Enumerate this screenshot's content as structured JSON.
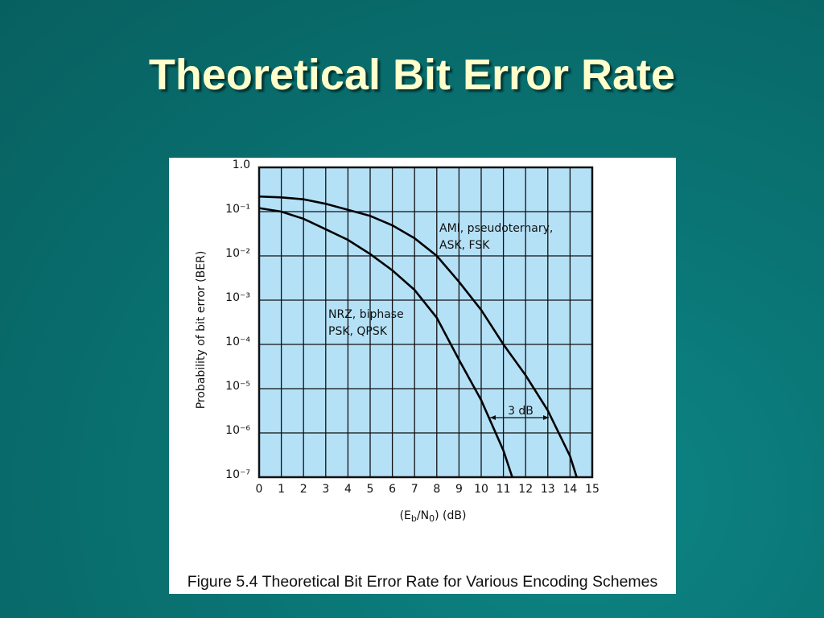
{
  "slide_title": "Theoretical Bit Error Rate",
  "caption": "Figure 5.4  Theoretical Bit Error Rate for Various Encoding Schemes",
  "chart_data": {
    "type": "line",
    "y_scale": "log",
    "grid": true,
    "plot_background": "#b5e1f7",
    "y_label": "Probability of bit error (BER)",
    "x_label_parts": [
      "(E",
      "b",
      "/N",
      "0",
      ") (dB)"
    ],
    "xlim": [
      0,
      15
    ],
    "xticks": [
      0,
      1,
      2,
      3,
      4,
      5,
      6,
      7,
      8,
      9,
      10,
      11,
      12,
      13,
      14,
      15
    ],
    "ylim": [
      1e-07,
      1
    ],
    "yticks": [
      {
        "value": 1,
        "label": "1.0"
      },
      {
        "value": 0.1,
        "label": "10⁻¹"
      },
      {
        "value": 0.01,
        "label": "10⁻²"
      },
      {
        "value": 0.001,
        "label": "10⁻³"
      },
      {
        "value": 0.0001,
        "label": "10⁻⁴"
      },
      {
        "value": 1e-05,
        "label": "10⁻⁵"
      },
      {
        "value": 1e-06,
        "label": "10⁻⁶"
      },
      {
        "value": 1e-07,
        "label": "10⁻⁷"
      }
    ],
    "series": [
      {
        "label_lines": [
          "AMI, pseudoternary,",
          "ASK, FSK"
        ],
        "color": "#000000",
        "x": [
          0,
          1,
          2,
          3,
          4,
          5,
          6,
          7,
          8,
          9,
          10,
          11,
          12,
          13,
          14,
          14.3
        ],
        "values": [
          0.22,
          0.21,
          0.19,
          0.15,
          0.11,
          0.08,
          0.049,
          0.025,
          0.01,
          0.0026,
          0.0006,
          0.0001,
          2e-05,
          3.2e-06,
          3e-07,
          1e-07
        ]
      },
      {
        "label_lines": [
          "NRZ, biphase",
          "PSK, QPSK"
        ],
        "color": "#000000",
        "x": [
          0,
          1,
          2,
          3,
          4,
          5,
          6,
          7,
          8,
          9,
          10,
          11,
          11.4
        ],
        "values": [
          0.12,
          0.1,
          0.069,
          0.04,
          0.023,
          0.011,
          0.0047,
          0.0017,
          0.0004,
          4.5e-05,
          5.5e-06,
          4e-07,
          1e-07
        ]
      }
    ],
    "gap_annotation": "3 dB"
  }
}
